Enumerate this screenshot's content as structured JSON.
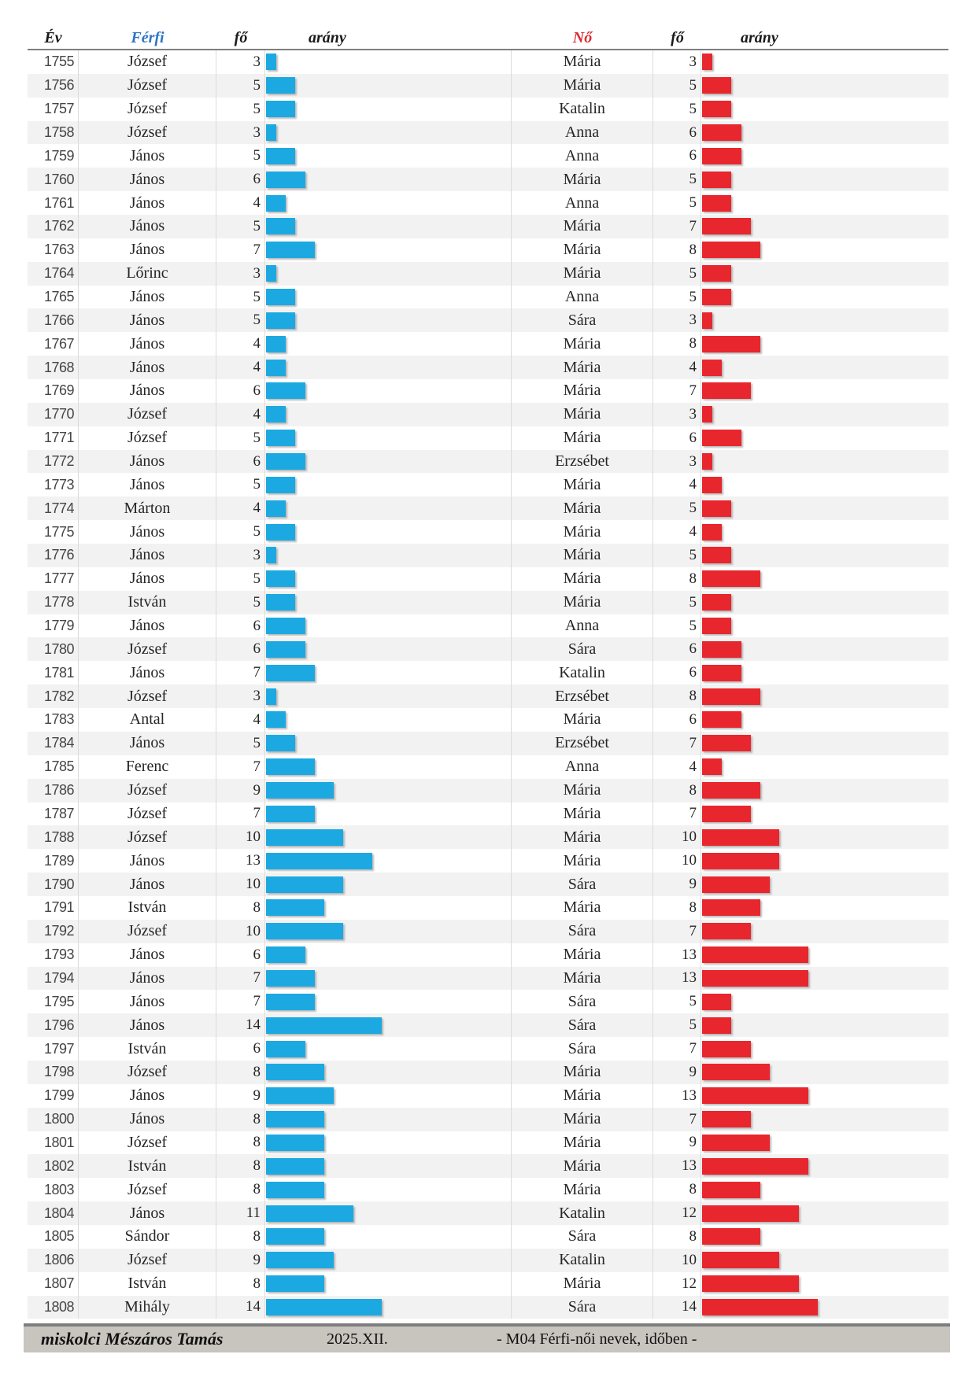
{
  "header": {
    "col_year": "Év",
    "col_male": "Férfi",
    "col_male_count": "fő",
    "col_male_ratio": "arány",
    "col_female": "Nő",
    "col_female_count": "fő",
    "col_female_ratio": "arány"
  },
  "footer": {
    "author": "miskolci Mészáros Tamás",
    "date": "2025.XII.",
    "title": "- M04  Férfi-női nevek, időben -"
  },
  "colors": {
    "male_bar": "#1CA9E2",
    "female_bar": "#E8262D",
    "male_header_text": "#2E74C6",
    "female_header_text": "#DC2B30",
    "alt_row": "#F2F2F2",
    "footer_band": "#C8C4BE"
  },
  "chart_data": {
    "type": "bar",
    "title": "M04 Férfi-női nevek, időben",
    "xlabel": "Év",
    "ylabel": "fő",
    "legend": [
      "Férfi",
      "Nő"
    ],
    "layout": "horizontal in-table data bars, male (blue) and female (red) most frequent given name per year",
    "value_range": [
      3,
      14
    ],
    "rows": [
      {
        "year": 1755,
        "male_name": "József",
        "male_count": 3,
        "female_name": "Mária",
        "female_count": 3
      },
      {
        "year": 1756,
        "male_name": "József",
        "male_count": 5,
        "female_name": "Mária",
        "female_count": 5
      },
      {
        "year": 1757,
        "male_name": "József",
        "male_count": 5,
        "female_name": "Katalin",
        "female_count": 5
      },
      {
        "year": 1758,
        "male_name": "József",
        "male_count": 3,
        "female_name": "Anna",
        "female_count": 6
      },
      {
        "year": 1759,
        "male_name": "János",
        "male_count": 5,
        "female_name": "Anna",
        "female_count": 6
      },
      {
        "year": 1760,
        "male_name": "János",
        "male_count": 6,
        "female_name": "Mária",
        "female_count": 5
      },
      {
        "year": 1761,
        "male_name": "János",
        "male_count": 4,
        "female_name": "Anna",
        "female_count": 5
      },
      {
        "year": 1762,
        "male_name": "János",
        "male_count": 5,
        "female_name": "Mária",
        "female_count": 7
      },
      {
        "year": 1763,
        "male_name": "János",
        "male_count": 7,
        "female_name": "Mária",
        "female_count": 8
      },
      {
        "year": 1764,
        "male_name": "Lőrinc",
        "male_count": 3,
        "female_name": "Mária",
        "female_count": 5
      },
      {
        "year": 1765,
        "male_name": "János",
        "male_count": 5,
        "female_name": "Anna",
        "female_count": 5
      },
      {
        "year": 1766,
        "male_name": "János",
        "male_count": 5,
        "female_name": "Sára",
        "female_count": 3
      },
      {
        "year": 1767,
        "male_name": "János",
        "male_count": 4,
        "female_name": "Mária",
        "female_count": 8
      },
      {
        "year": 1768,
        "male_name": "János",
        "male_count": 4,
        "female_name": "Mária",
        "female_count": 4
      },
      {
        "year": 1769,
        "male_name": "János",
        "male_count": 6,
        "female_name": "Mária",
        "female_count": 7
      },
      {
        "year": 1770,
        "male_name": "József",
        "male_count": 4,
        "female_name": "Mária",
        "female_count": 3
      },
      {
        "year": 1771,
        "male_name": "József",
        "male_count": 5,
        "female_name": "Mária",
        "female_count": 6
      },
      {
        "year": 1772,
        "male_name": "János",
        "male_count": 6,
        "female_name": "Erzsébet",
        "female_count": 3
      },
      {
        "year": 1773,
        "male_name": "János",
        "male_count": 5,
        "female_name": "Mária",
        "female_count": 4
      },
      {
        "year": 1774,
        "male_name": "Márton",
        "male_count": 4,
        "female_name": "Mária",
        "female_count": 5
      },
      {
        "year": 1775,
        "male_name": "János",
        "male_count": 5,
        "female_name": "Mária",
        "female_count": 4
      },
      {
        "year": 1776,
        "male_name": "János",
        "male_count": 3,
        "female_name": "Mária",
        "female_count": 5
      },
      {
        "year": 1777,
        "male_name": "János",
        "male_count": 5,
        "female_name": "Mária",
        "female_count": 8
      },
      {
        "year": 1778,
        "male_name": "István",
        "male_count": 5,
        "female_name": "Mária",
        "female_count": 5
      },
      {
        "year": 1779,
        "male_name": "János",
        "male_count": 6,
        "female_name": "Anna",
        "female_count": 5
      },
      {
        "year": 1780,
        "male_name": "József",
        "male_count": 6,
        "female_name": "Sára",
        "female_count": 6
      },
      {
        "year": 1781,
        "male_name": "János",
        "male_count": 7,
        "female_name": "Katalin",
        "female_count": 6
      },
      {
        "year": 1782,
        "male_name": "József",
        "male_count": 3,
        "female_name": "Erzsébet",
        "female_count": 8
      },
      {
        "year": 1783,
        "male_name": "Antal",
        "male_count": 4,
        "female_name": "Mária",
        "female_count": 6
      },
      {
        "year": 1784,
        "male_name": "János",
        "male_count": 5,
        "female_name": "Erzsébet",
        "female_count": 7
      },
      {
        "year": 1785,
        "male_name": "Ferenc",
        "male_count": 7,
        "female_name": "Anna",
        "female_count": 4
      },
      {
        "year": 1786,
        "male_name": "József",
        "male_count": 9,
        "female_name": "Mária",
        "female_count": 8
      },
      {
        "year": 1787,
        "male_name": "József",
        "male_count": 7,
        "female_name": "Mária",
        "female_count": 7
      },
      {
        "year": 1788,
        "male_name": "József",
        "male_count": 10,
        "female_name": "Mária",
        "female_count": 10
      },
      {
        "year": 1789,
        "male_name": "János",
        "male_count": 13,
        "female_name": "Mária",
        "female_count": 10
      },
      {
        "year": 1790,
        "male_name": "János",
        "male_count": 10,
        "female_name": "Sára",
        "female_count": 9
      },
      {
        "year": 1791,
        "male_name": "István",
        "male_count": 8,
        "female_name": "Mária",
        "female_count": 8
      },
      {
        "year": 1792,
        "male_name": "József",
        "male_count": 10,
        "female_name": "Sára",
        "female_count": 7
      },
      {
        "year": 1793,
        "male_name": "János",
        "male_count": 6,
        "female_name": "Mária",
        "female_count": 13
      },
      {
        "year": 1794,
        "male_name": "János",
        "male_count": 7,
        "female_name": "Mária",
        "female_count": 13
      },
      {
        "year": 1795,
        "male_name": "János",
        "male_count": 7,
        "female_name": "Sára",
        "female_count": 5
      },
      {
        "year": 1796,
        "male_name": "János",
        "male_count": 14,
        "female_name": "Sára",
        "female_count": 5
      },
      {
        "year": 1797,
        "male_name": "István",
        "male_count": 6,
        "female_name": "Sára",
        "female_count": 7
      },
      {
        "year": 1798,
        "male_name": "József",
        "male_count": 8,
        "female_name": "Mária",
        "female_count": 9
      },
      {
        "year": 1799,
        "male_name": "János",
        "male_count": 9,
        "female_name": "Mária",
        "female_count": 13
      },
      {
        "year": 1800,
        "male_name": "János",
        "male_count": 8,
        "female_name": "Mária",
        "female_count": 7
      },
      {
        "year": 1801,
        "male_name": "József",
        "male_count": 8,
        "female_name": "Mária",
        "female_count": 9
      },
      {
        "year": 1802,
        "male_name": "István",
        "male_count": 8,
        "female_name": "Mária",
        "female_count": 13
      },
      {
        "year": 1803,
        "male_name": "József",
        "male_count": 8,
        "female_name": "Mária",
        "female_count": 8
      },
      {
        "year": 1804,
        "male_name": "János",
        "male_count": 11,
        "female_name": "Katalin",
        "female_count": 12
      },
      {
        "year": 1805,
        "male_name": "Sándor",
        "male_count": 8,
        "female_name": "Sára",
        "female_count": 8
      },
      {
        "year": 1806,
        "male_name": "József",
        "male_count": 9,
        "female_name": "Katalin",
        "female_count": 10
      },
      {
        "year": 1807,
        "male_name": "István",
        "male_count": 8,
        "female_name": "Mária",
        "female_count": 12
      },
      {
        "year": 1808,
        "male_name": "Mihály",
        "male_count": 14,
        "female_name": "Sára",
        "female_count": 14
      }
    ]
  }
}
